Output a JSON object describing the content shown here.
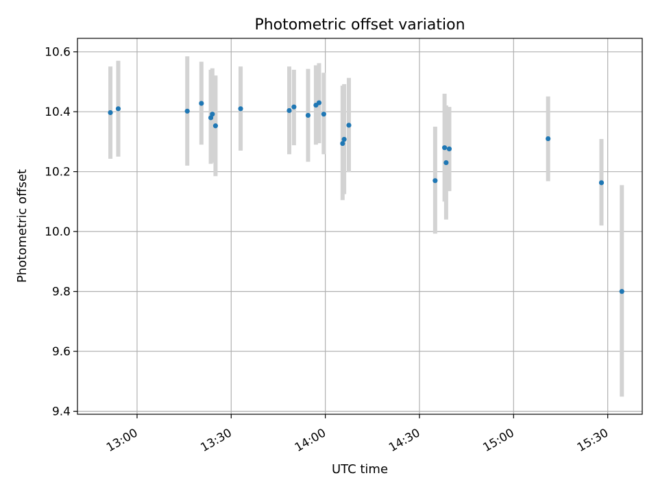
{
  "chart_data": {
    "type": "scatter",
    "title": "Photometric offset variation",
    "xlabel": "UTC time",
    "ylabel": "Photometric offset",
    "x_ticks": [
      "13:00",
      "13:30",
      "14:00",
      "14:30",
      "15:00",
      "15:30"
    ],
    "y_ticks": [
      "9.4",
      "9.6",
      "9.8",
      "10.0",
      "10.2",
      "10.4",
      "10.6"
    ],
    "xlim": [
      "12:41",
      "15:41"
    ],
    "ylim": [
      9.39,
      10.645
    ],
    "grid": true,
    "colors": {
      "point": "#1f77b4",
      "errorbar": "#d3d3d3"
    },
    "points": [
      {
        "x": "12:51:30",
        "y": 10.397,
        "yerr_low": 10.243,
        "yerr_high": 10.551
      },
      {
        "x": "12:54:00",
        "y": 10.41,
        "yerr_low": 10.25,
        "yerr_high": 10.57
      },
      {
        "x": "13:16:00",
        "y": 10.402,
        "yerr_low": 10.22,
        "yerr_high": 10.585
      },
      {
        "x": "13:20:30",
        "y": 10.428,
        "yerr_low": 10.29,
        "yerr_high": 10.567
      },
      {
        "x": "13:23:30",
        "y": 10.38,
        "yerr_low": 10.226,
        "yerr_high": 10.54
      },
      {
        "x": "13:24:00",
        "y": 10.392,
        "yerr_low": 10.23,
        "yerr_high": 10.545
      },
      {
        "x": "13:25:00",
        "y": 10.353,
        "yerr_low": 10.185,
        "yerr_high": 10.521
      },
      {
        "x": "13:33:00",
        "y": 10.41,
        "yerr_low": 10.27,
        "yerr_high": 10.551
      },
      {
        "x": "13:48:30",
        "y": 10.404,
        "yerr_low": 10.258,
        "yerr_high": 10.551
      },
      {
        "x": "13:50:00",
        "y": 10.416,
        "yerr_low": 10.288,
        "yerr_high": 10.54
      },
      {
        "x": "13:54:30",
        "y": 10.388,
        "yerr_low": 10.233,
        "yerr_high": 10.543
      },
      {
        "x": "13:57:00",
        "y": 10.422,
        "yerr_low": 10.29,
        "yerr_high": 10.555
      },
      {
        "x": "13:58:00",
        "y": 10.43,
        "yerr_low": 10.295,
        "yerr_high": 10.562
      },
      {
        "x": "13:59:30",
        "y": 10.392,
        "yerr_low": 10.258,
        "yerr_high": 10.53
      },
      {
        "x": "14:05:30",
        "y": 10.294,
        "yerr_low": 10.105,
        "yerr_high": 10.487
      },
      {
        "x": "14:06:00",
        "y": 10.308,
        "yerr_low": 10.125,
        "yerr_high": 10.492
      },
      {
        "x": "14:07:30",
        "y": 10.355,
        "yerr_low": 10.198,
        "yerr_high": 10.513
      },
      {
        "x": "14:35:00",
        "y": 10.17,
        "yerr_low": 9.993,
        "yerr_high": 10.35
      },
      {
        "x": "14:38:00",
        "y": 10.28,
        "yerr_low": 10.1,
        "yerr_high": 10.46
      },
      {
        "x": "14:38:30",
        "y": 10.23,
        "yerr_low": 10.04,
        "yerr_high": 10.421
      },
      {
        "x": "14:39:30",
        "y": 10.276,
        "yerr_low": 10.135,
        "yerr_high": 10.416
      },
      {
        "x": "15:11:00",
        "y": 10.31,
        "yerr_low": 10.168,
        "yerr_high": 10.451
      },
      {
        "x": "15:28:00",
        "y": 10.163,
        "yerr_low": 10.02,
        "yerr_high": 10.309
      },
      {
        "x": "15:34:30",
        "y": 9.8,
        "yerr_low": 9.449,
        "yerr_high": 10.155
      }
    ]
  }
}
